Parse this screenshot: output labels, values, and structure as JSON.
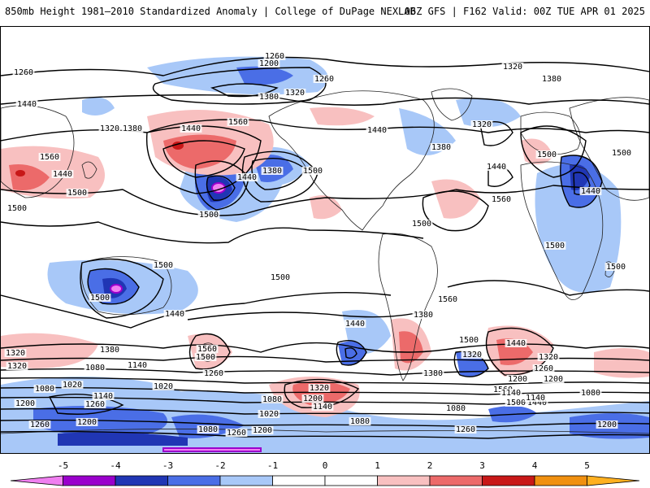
{
  "header": {
    "title_left": "850mb Height 1981–2010 Standardized Anomaly | College of DuPage NEXLAB",
    "title_right": "06Z GFS | F162 Valid: 00Z TUE APR 01 2025"
  },
  "colorbar": {
    "ticks": [
      "-5",
      "-4",
      "-3",
      "-2",
      "-1",
      "0",
      "1",
      "2",
      "3",
      "4",
      "5"
    ],
    "colors": [
      "#f07ff0",
      "#9a00cc",
      "#2036b4",
      "#4a6ee6",
      "#a8c8f8",
      "#ffffff",
      "#ffffff",
      "#f8c0c0",
      "#ec6a6a",
      "#c81818",
      "#f09010",
      "#ffb020"
    ]
  },
  "map": {
    "contour_labels": [
      {
        "text": "1260"
      },
      {
        "text": "1200"
      },
      {
        "text": "1260"
      },
      {
        "text": "1260"
      },
      {
        "text": "1320"
      },
      {
        "text": "1380"
      },
      {
        "text": "1380"
      },
      {
        "text": "1320"
      },
      {
        "text": "1440"
      },
      {
        "text": "1320"
      },
      {
        "text": "1380"
      },
      {
        "text": "1440"
      },
      {
        "text": "1560"
      },
      {
        "text": "1440"
      },
      {
        "text": "1320"
      },
      {
        "text": "1380"
      },
      {
        "text": "1500"
      },
      {
        "text": "1560"
      },
      {
        "text": "1500"
      },
      {
        "text": "1440"
      },
      {
        "text": "1380"
      },
      {
        "text": "1500"
      },
      {
        "text": "1500"
      },
      {
        "text": "1440"
      },
      {
        "text": "1500"
      },
      {
        "text": "1560"
      },
      {
        "text": "1500"
      },
      {
        "text": "1440"
      },
      {
        "text": "1500"
      },
      {
        "text": "1500"
      },
      {
        "text": "1500"
      },
      {
        "text": "1500"
      },
      {
        "text": "1500"
      },
      {
        "text": "1500"
      },
      {
        "text": "1440"
      },
      {
        "text": "1440"
      },
      {
        "text": "1380"
      },
      {
        "text": "1560"
      },
      {
        "text": "1500"
      },
      {
        "text": "1440"
      },
      {
        "text": "1560"
      },
      {
        "text": "1500"
      },
      {
        "text": "1380"
      },
      {
        "text": "1260"
      },
      {
        "text": "1560"
      },
      {
        "text": "1500"
      },
      {
        "text": "1440"
      },
      {
        "text": "1320"
      },
      {
        "text": "1440"
      },
      {
        "text": "1320"
      },
      {
        "text": "1380"
      },
      {
        "text": "1140"
      },
      {
        "text": "1080"
      },
      {
        "text": "1320"
      },
      {
        "text": "1260"
      },
      {
        "text": "1200"
      },
      {
        "text": "1020"
      },
      {
        "text": "1080"
      },
      {
        "text": "1020"
      },
      {
        "text": "1140"
      },
      {
        "text": "1200"
      },
      {
        "text": "1260"
      },
      {
        "text": "1200"
      },
      {
        "text": "1260"
      },
      {
        "text": "1200"
      },
      {
        "text": "1080"
      },
      {
        "text": "1020"
      },
      {
        "text": "1140"
      },
      {
        "text": "1080"
      },
      {
        "text": "1080"
      },
      {
        "text": "1080"
      },
      {
        "text": "1140"
      },
      {
        "text": "1140"
      },
      {
        "text": "1260"
      },
      {
        "text": "1200"
      },
      {
        "text": "1080"
      },
      {
        "text": "1260"
      },
      {
        "text": "1200"
      },
      {
        "text": "1320"
      },
      {
        "text": "1200"
      },
      {
        "text": "1320"
      }
    ]
  }
}
